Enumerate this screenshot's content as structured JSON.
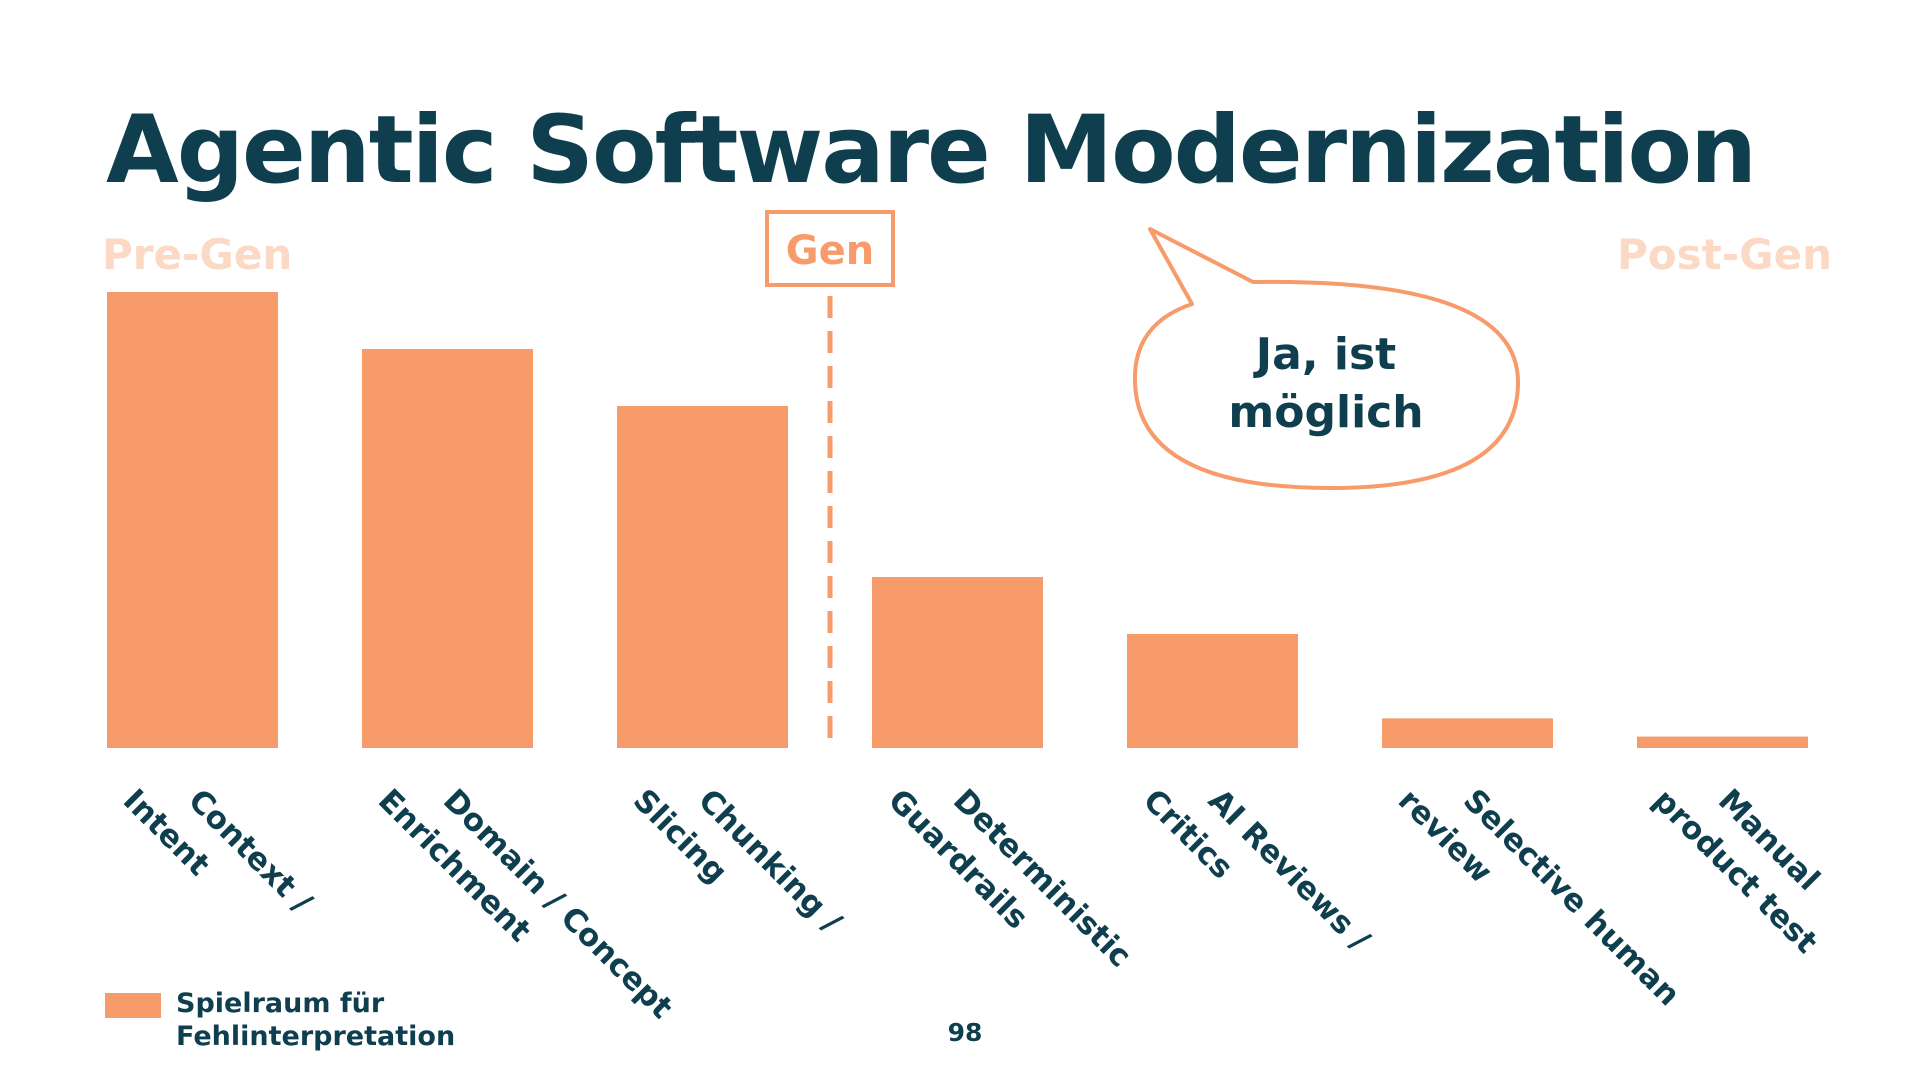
{
  "slide": {
    "title": "Agentic Software Modernization",
    "page_number": "98"
  },
  "phases": {
    "pre": "Pre-Gen",
    "gen": "Gen",
    "post": "Post-Gen"
  },
  "bubble": {
    "line1": "Ja, ist",
    "line2": "möglich"
  },
  "legend": {
    "line1": "Spielraum für",
    "line2": "Fehlinterpretation"
  },
  "colors": {
    "bar": "#f89b6a",
    "title": "#0f3f4f",
    "phase_faded": "#fcd9c4",
    "accent": "#f89b6a"
  },
  "chart_data": {
    "type": "bar",
    "title": "Agentic Software Modernization",
    "xlabel": "",
    "ylabel": "",
    "ylim": [
      0,
      100
    ],
    "legend": [
      "Spielraum für Fehlinterpretation"
    ],
    "legend_position": "bottom-left",
    "categories": [
      [
        "Context /",
        "Intent"
      ],
      [
        "Domain / Concept",
        "Enrichment"
      ],
      [
        "Chunking /",
        "Slicing"
      ],
      [
        "Deterministic",
        "Guardrails"
      ],
      [
        "AI Reviews /",
        "Critics"
      ],
      [
        "Selective human",
        "review"
      ],
      [
        "Manual",
        "product test"
      ]
    ],
    "values": [
      100,
      87.5,
      75,
      37.5,
      25,
      6.5,
      2.5
    ]
  }
}
